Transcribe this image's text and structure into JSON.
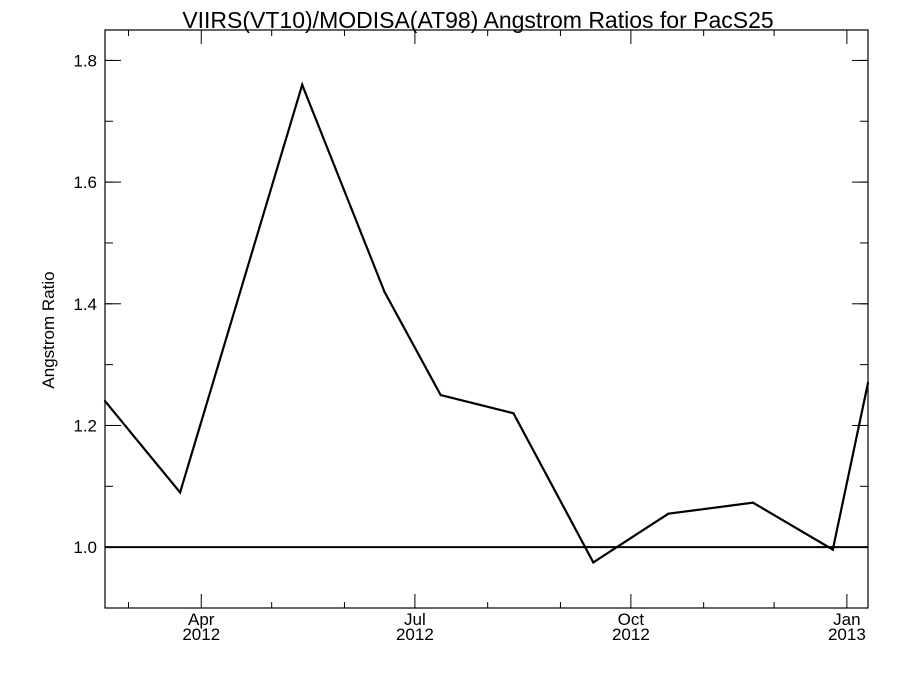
{
  "chart_data": {
    "type": "line",
    "title": "VIIRS(VT10)/MODISA(AT98)  Angstrom Ratios for PacS25",
    "xlabel": "",
    "ylabel": "Angstrom Ratio",
    "xlim": [
      "2012-02-20",
      "2013-01-10"
    ],
    "ylim": [
      0.9,
      1.85
    ],
    "grid": false,
    "y_ticks": [
      {
        "value": 1.0,
        "label": "1.0"
      },
      {
        "value": 1.2,
        "label": "1.2"
      },
      {
        "value": 1.4,
        "label": "1.4"
      },
      {
        "value": 1.6,
        "label": "1.6"
      },
      {
        "value": 1.8,
        "label": "1.8"
      }
    ],
    "x_ticks": [
      {
        "date": "2012-04-01",
        "month": "Apr",
        "year": "2012"
      },
      {
        "date": "2012-07-01",
        "month": "Jul",
        "year": "2012"
      },
      {
        "date": "2012-10-01",
        "month": "Oct",
        "year": "2012"
      },
      {
        "date": "2013-01-01",
        "month": "Jan",
        "year": "2013"
      }
    ],
    "x_minor_ticks": [
      "2012-03-01",
      "2012-05-01",
      "2012-06-01",
      "2012-08-01",
      "2012-09-01",
      "2012-11-01",
      "2012-12-01"
    ],
    "reference_line": {
      "y": 1.0
    },
    "series": [
      {
        "points": [
          {
            "x": "2012-02-20",
            "y": 1.24
          },
          {
            "x": "2012-03-23",
            "y": 1.09
          },
          {
            "x": "2012-05-14",
            "y": 1.76
          },
          {
            "x": "2012-06-18",
            "y": 1.42
          },
          {
            "x": "2012-07-12",
            "y": 1.25
          },
          {
            "x": "2012-08-12",
            "y": 1.22
          },
          {
            "x": "2012-09-15",
            "y": 0.975
          },
          {
            "x": "2012-10-17",
            "y": 1.055
          },
          {
            "x": "2012-11-22",
            "y": 1.073
          },
          {
            "x": "2012-12-26",
            "y": 0.996
          },
          {
            "x": "2013-01-10",
            "y": 1.27
          }
        ]
      }
    ]
  }
}
